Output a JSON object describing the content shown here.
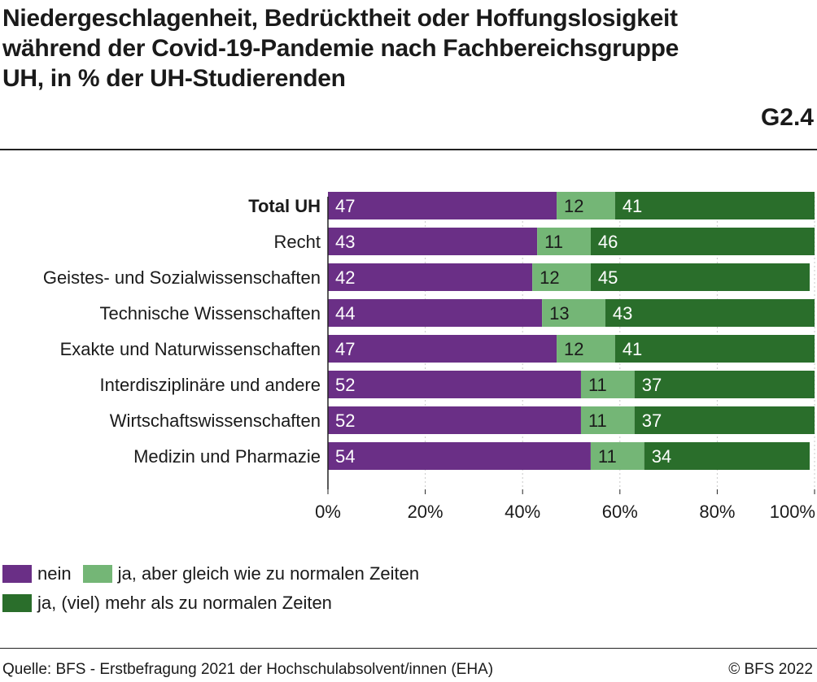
{
  "header": {
    "title": "Niedergeschlagenheit, Bedrücktheit oder Hoffungslosigkeit während der Covid-19-Pandemie nach Fachbereichsgruppe UH, in % der UH-Studierenden",
    "figure_id": "G2.4"
  },
  "chart_data": {
    "type": "bar",
    "orientation": "horizontal",
    "stacked": true,
    "percent_stacked": true,
    "categories": [
      "Total UH",
      "Recht",
      "Geistes- und Sozialwissenschaften",
      "Technische Wissenschaften",
      "Exakte und Naturwissenschaften",
      "Interdisziplinäre und andere",
      "Wirtschaftswissenschaften",
      "Medizin und Pharmazie"
    ],
    "bold_category": "Total UH",
    "series": [
      {
        "name": "nein",
        "color": "#6a2f86",
        "values": [
          47,
          43,
          42,
          44,
          47,
          52,
          52,
          54
        ]
      },
      {
        "name": "ja, aber gleich wie zu normalen Zeiten",
        "color": "#74b676",
        "values": [
          12,
          11,
          12,
          13,
          12,
          11,
          11,
          11
        ]
      },
      {
        "name": "ja, (viel) mehr als zu normalen Zeiten",
        "color": "#2a6e2b",
        "values": [
          41,
          46,
          45,
          43,
          41,
          37,
          37,
          34
        ]
      }
    ],
    "xlim": [
      0,
      100
    ],
    "x_ticks": [
      0,
      20,
      40,
      60,
      80,
      100
    ],
    "x_tick_labels": [
      "0%",
      "20%",
      "40%",
      "60%",
      "80%",
      "100%"
    ],
    "grid": "vertical",
    "legend_position": "bottom-left"
  },
  "legend": {
    "rows": [
      [
        {
          "label": "nein",
          "color": "#6a2f86"
        },
        {
          "label": "ja, aber gleich wie zu normalen Zeiten",
          "color": "#74b676"
        }
      ],
      [
        {
          "label": "ja, (viel) mehr als zu normalen Zeiten",
          "color": "#2a6e2b"
        }
      ]
    ]
  },
  "footer": {
    "source": "Quelle: BFS - Erstbefragung 2021 der Hochschulabsolvent/innen (EHA)",
    "copyright": "© BFS 2022"
  }
}
